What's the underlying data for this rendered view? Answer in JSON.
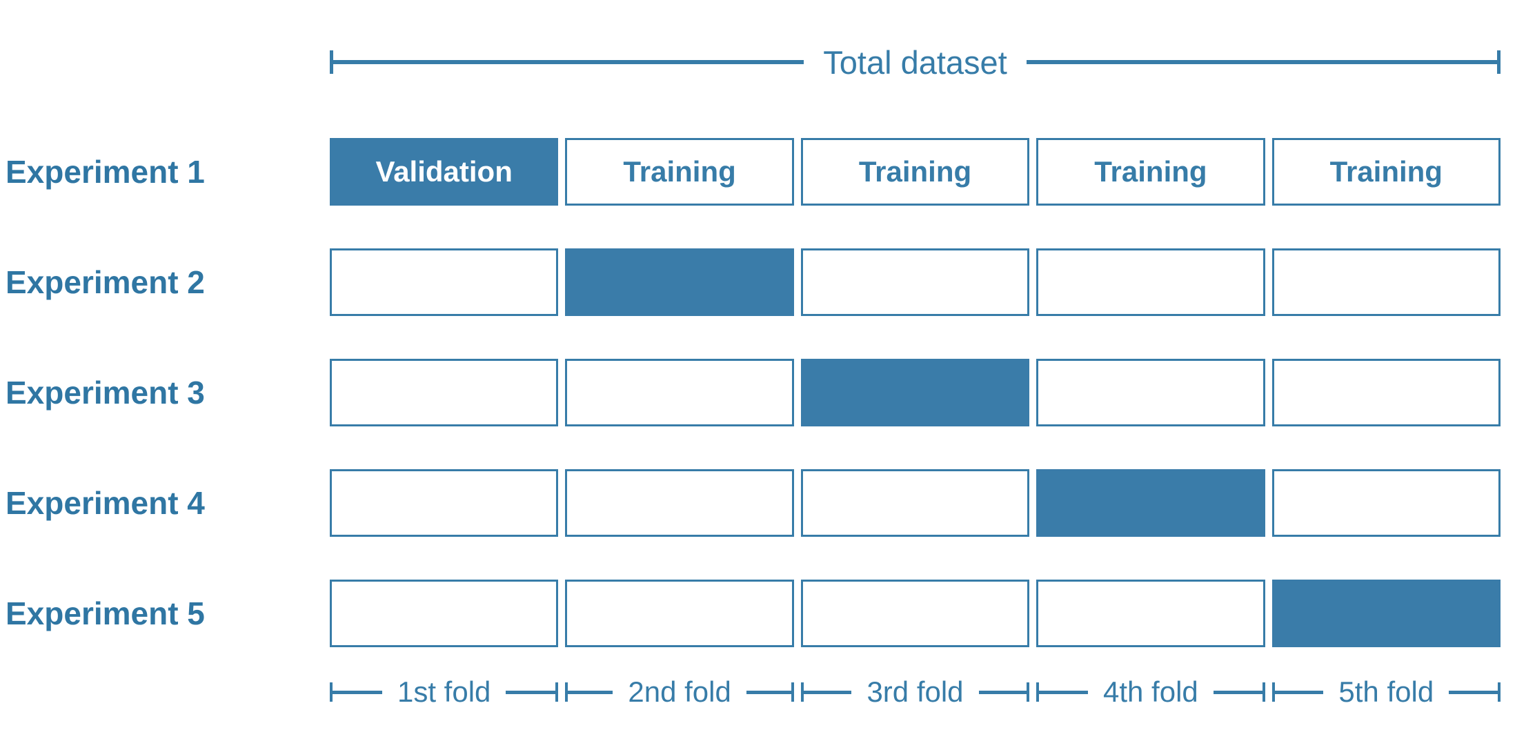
{
  "colors": {
    "primary": "#377CA8",
    "cell_fill": "#3A7CA9",
    "label_text": "#2F76A3",
    "background": "#FFFFFF",
    "filled_cell_text": "#FFFFFF"
  },
  "header": {
    "total_label": "Total dataset"
  },
  "experiments": [
    {
      "label": "Experiment 1",
      "cells": [
        {
          "state": "filled",
          "label": "Validation"
        },
        {
          "state": "outline",
          "label": "Training"
        },
        {
          "state": "outline",
          "label": "Training"
        },
        {
          "state": "outline",
          "label": "Training"
        },
        {
          "state": "outline",
          "label": "Training"
        }
      ]
    },
    {
      "label": "Experiment 2",
      "cells": [
        {
          "state": "outline",
          "label": ""
        },
        {
          "state": "filled",
          "label": ""
        },
        {
          "state": "outline",
          "label": ""
        },
        {
          "state": "outline",
          "label": ""
        },
        {
          "state": "outline",
          "label": ""
        }
      ]
    },
    {
      "label": "Experiment 3",
      "cells": [
        {
          "state": "outline",
          "label": ""
        },
        {
          "state": "outline",
          "label": ""
        },
        {
          "state": "filled",
          "label": ""
        },
        {
          "state": "outline",
          "label": ""
        },
        {
          "state": "outline",
          "label": ""
        }
      ]
    },
    {
      "label": "Experiment 4",
      "cells": [
        {
          "state": "outline",
          "label": ""
        },
        {
          "state": "outline",
          "label": ""
        },
        {
          "state": "outline",
          "label": ""
        },
        {
          "state": "filled",
          "label": ""
        },
        {
          "state": "outline",
          "label": ""
        }
      ]
    },
    {
      "label": "Experiment 5",
      "cells": [
        {
          "state": "outline",
          "label": ""
        },
        {
          "state": "outline",
          "label": ""
        },
        {
          "state": "outline",
          "label": ""
        },
        {
          "state": "outline",
          "label": ""
        },
        {
          "state": "filled",
          "label": ""
        }
      ]
    }
  ],
  "folds": [
    {
      "label": "1st fold"
    },
    {
      "label": "2nd fold"
    },
    {
      "label": "3rd fold"
    },
    {
      "label": "4th fold"
    },
    {
      "label": "5th fold"
    }
  ]
}
